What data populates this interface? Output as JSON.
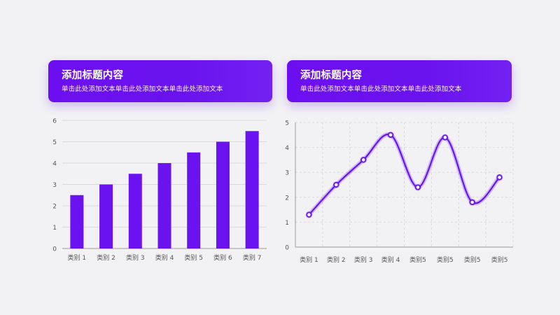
{
  "panels": [
    {
      "title": "添加标题内容",
      "subtitle": "单击此处添加文本单击此处添加文本单击此处添加文本"
    },
    {
      "title": "添加标题内容",
      "subtitle": "单击此处添加文本单击此处添加文本单击此处添加文本"
    }
  ],
  "colors": {
    "accent": "#6b12f0",
    "background": "#f2f2f4",
    "axis": "#999999",
    "grid": "#d9d9d9"
  },
  "chart_data": [
    {
      "type": "bar",
      "categories": [
        "类别 1",
        "类别 2",
        "类别 3",
        "类别 4",
        "类别 5",
        "类别 6",
        "类别 7"
      ],
      "values": [
        2.5,
        3,
        3.5,
        4,
        4.5,
        5,
        5.5
      ],
      "ylim": [
        0,
        6
      ],
      "yticks": [
        0,
        1,
        2,
        3,
        4,
        5,
        6
      ],
      "grid": "horizontal"
    },
    {
      "type": "line",
      "smooth": true,
      "categories": [
        "类别 1",
        "类别 2",
        "类别 3",
        "类别 4",
        "类别5",
        "类别5",
        "类别5",
        "类别5"
      ],
      "values": [
        1.3,
        2.5,
        3.5,
        4.5,
        2.4,
        4.4,
        1.8,
        2.8
      ],
      "ylim": [
        0,
        5
      ],
      "yticks": [
        0,
        1,
        2,
        3,
        4,
        5
      ],
      "grid": "both-dashed"
    }
  ]
}
